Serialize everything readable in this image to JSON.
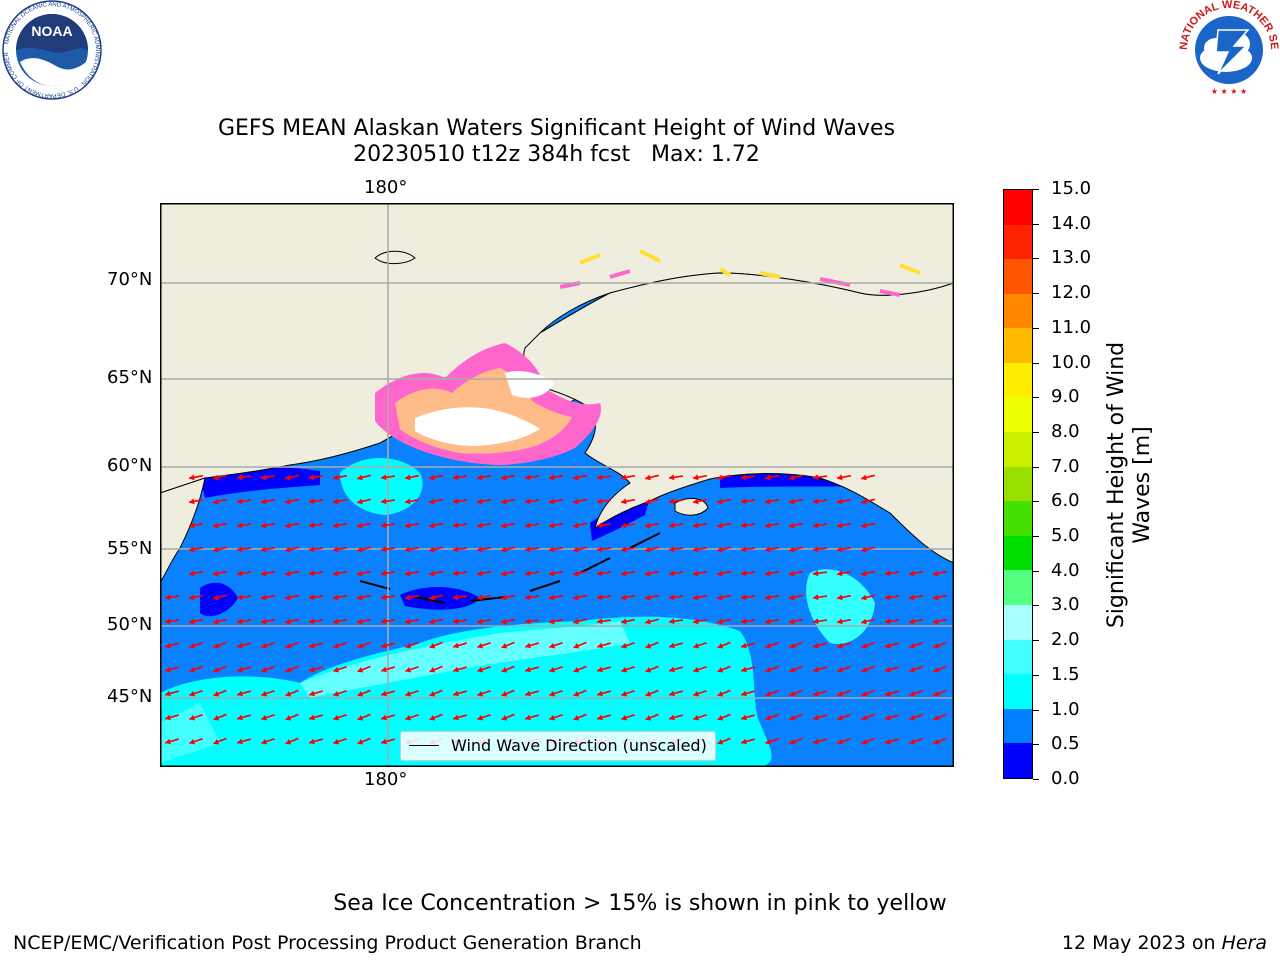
{
  "header": {
    "left_logo": {
      "text": "NOAA",
      "ring_text": "NATIONAL OCEANIC AND ATMOSPHERIC ADMINISTRATION · U.S. DEPARTMENT OF COMMERCE",
      "icon": "noaa-logo"
    },
    "right_logo": {
      "ring_text": "NATIONAL WEATHER SERVICE",
      "icon": "nws-logo"
    }
  },
  "map": {
    "title_line1": "GEFS MEAN Alaskan Waters Significant Height of Wind Waves",
    "title_line2": "20230510 t12z 384h fcst   Max: 1.72",
    "lon_label_top": "180°",
    "lon_label_bottom": "180°",
    "lat_labels": [
      "70°N",
      "65°N",
      "60°N",
      "55°N",
      "50°N",
      "45°N"
    ],
    "legend_label": "Wind Wave Direction (unscaled)",
    "arrow_color": "#ff0000",
    "land_color": "#efedde"
  },
  "colorbar": {
    "label_line1": "Significant Height of Wind",
    "label_line2": "Waves [m]",
    "ticks": [
      "0.0",
      "0.5",
      "1.0",
      "1.5",
      "2.0",
      "3.0",
      "4.0",
      "5.0",
      "6.0",
      "7.0",
      "8.0",
      "9.0",
      "10.0",
      "11.0",
      "12.0",
      "13.0",
      "14.0",
      "15.0"
    ],
    "colors": [
      "#0000ff",
      "#0080ff",
      "#00ffff",
      "#44ffff",
      "#aaffff",
      "#55ff80",
      "#00e000",
      "#44e000",
      "#99e000",
      "#ccf000",
      "#eeff00",
      "#ffee00",
      "#ffbb00",
      "#ff8800",
      "#ff5500",
      "#ff2200",
      "#ff0000"
    ]
  },
  "footer": {
    "note": "Sea Ice Concentration > 15% is shown in pink to yellow",
    "credit": "NCEP/EMC/Verification Post Processing Product Generation Branch",
    "date_prefix": "12 May 2023 on ",
    "machine": "Hera"
  }
}
